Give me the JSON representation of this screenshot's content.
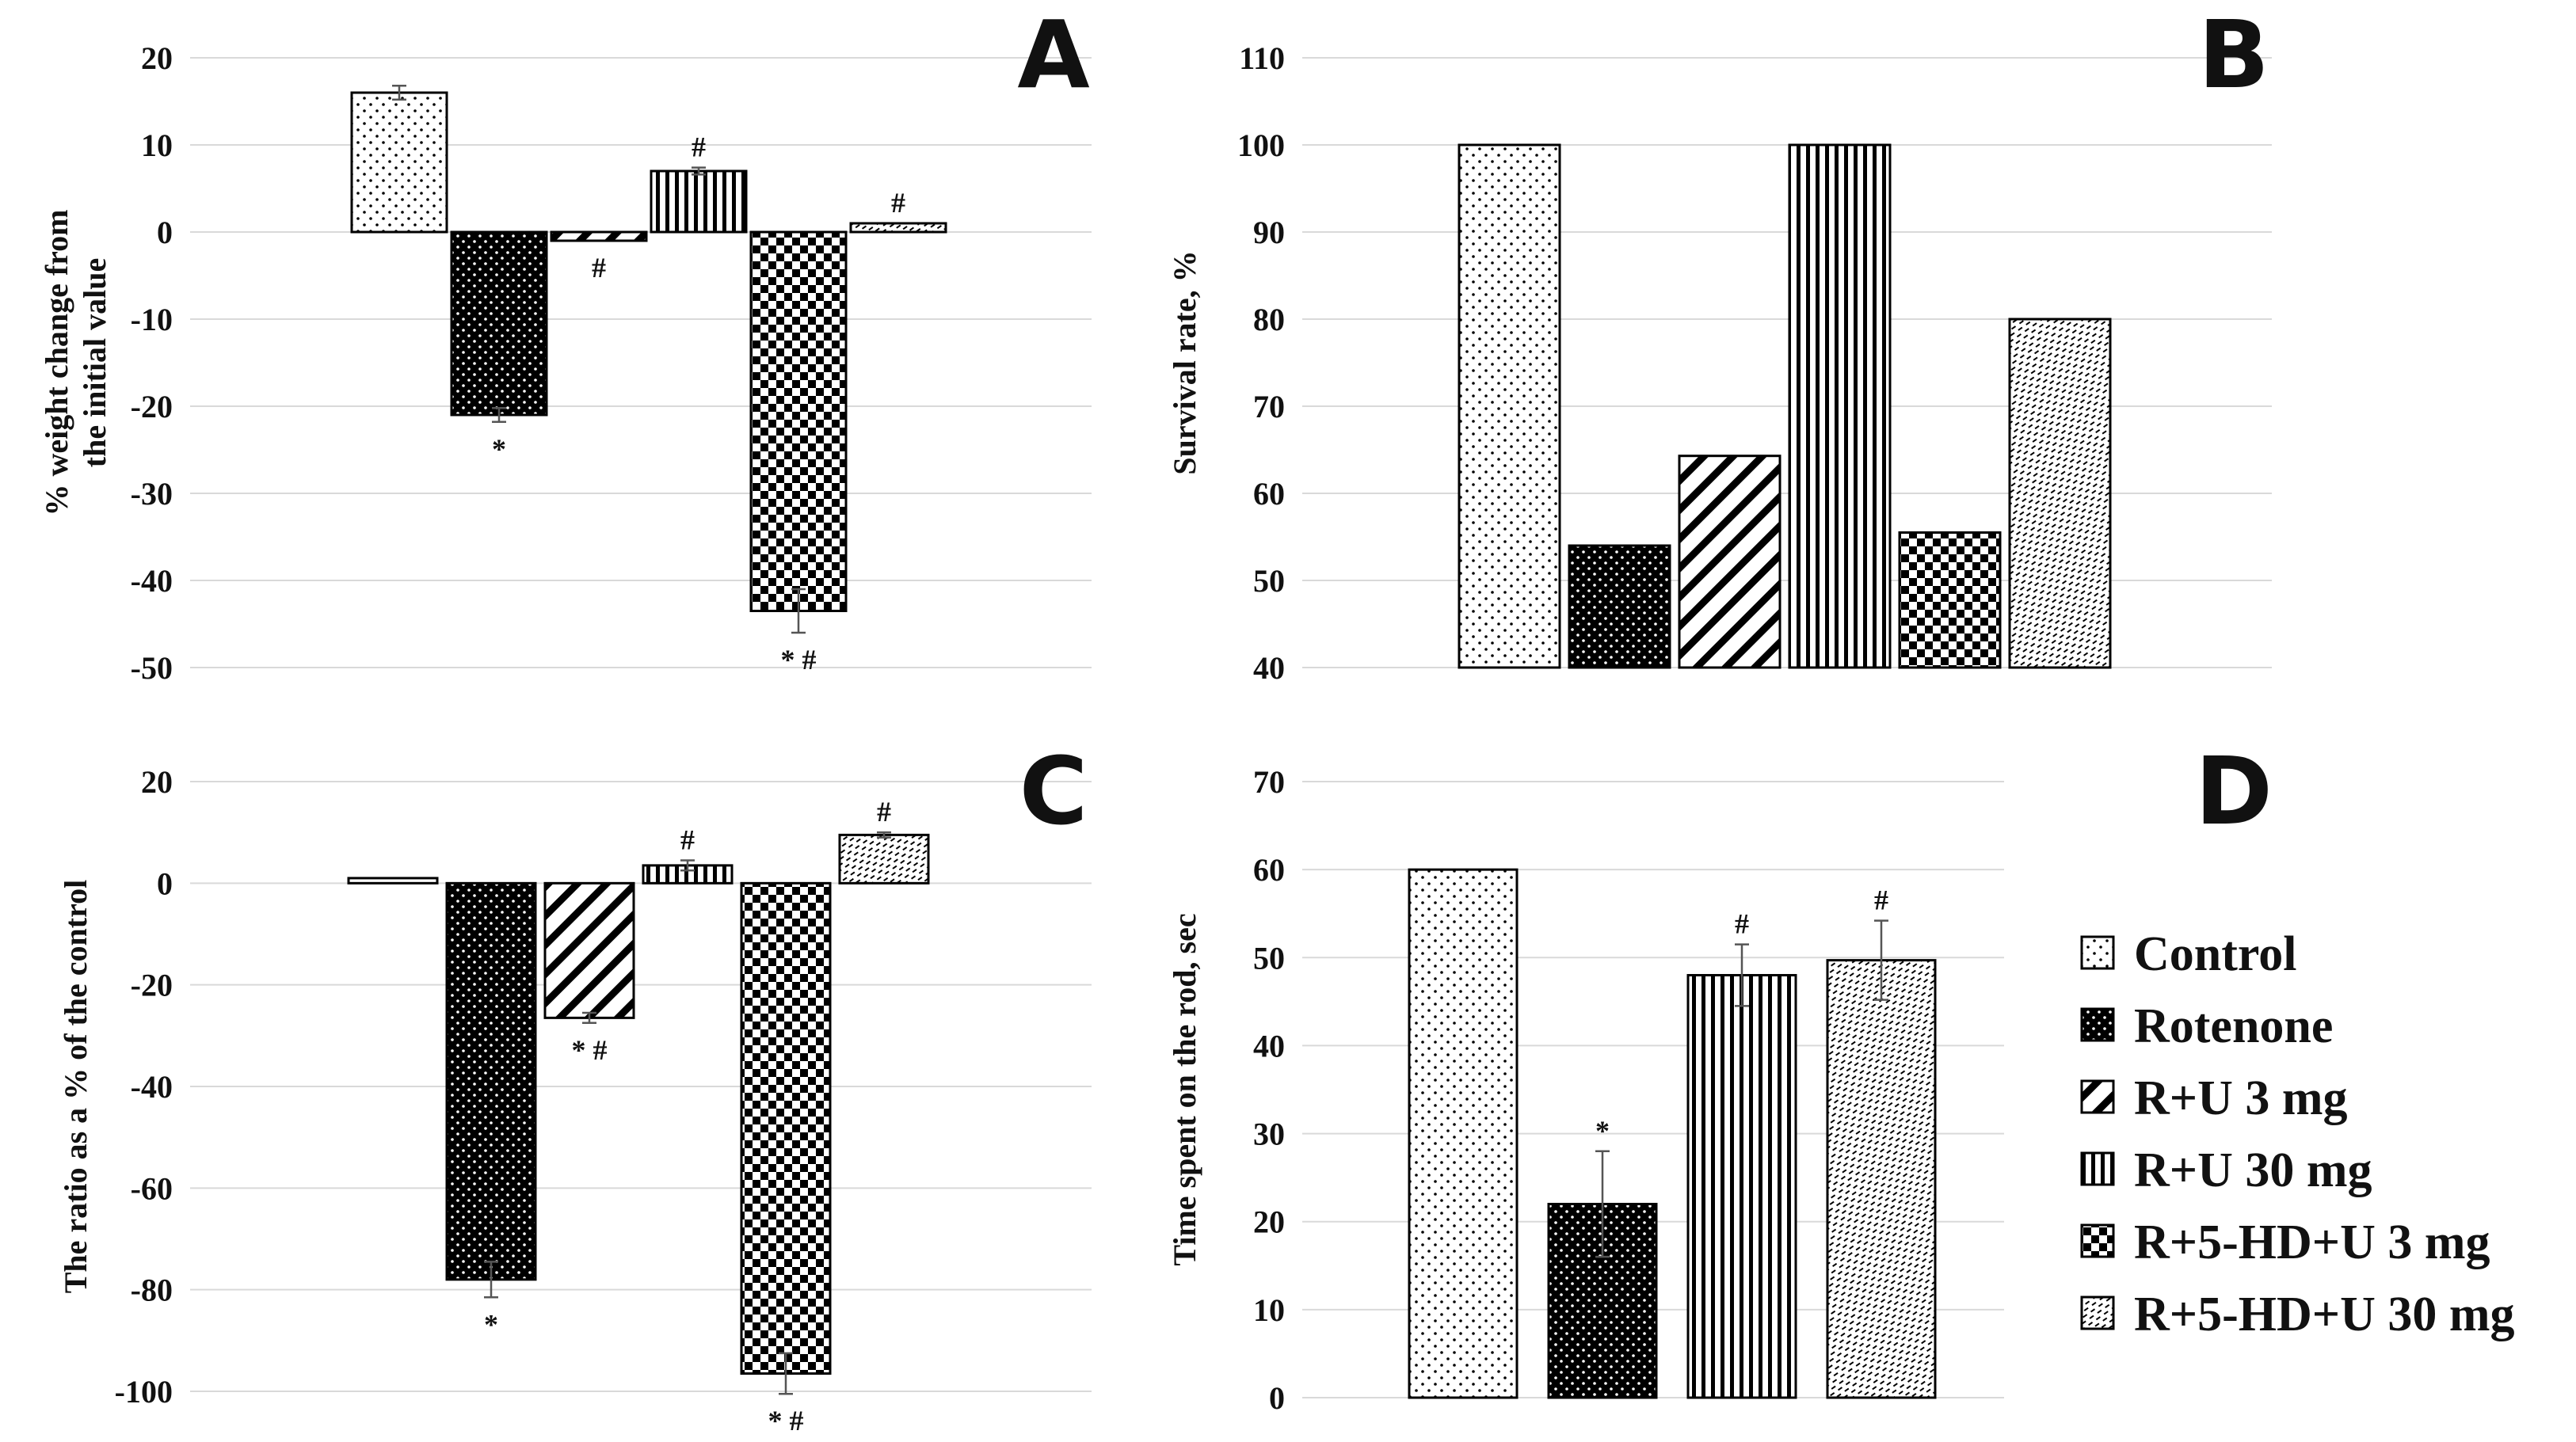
{
  "figure": {
    "legend": [
      {
        "label": "Control",
        "pattern": "dots-sparse"
      },
      {
        "label": "Rotenone",
        "pattern": "dots-black"
      },
      {
        "label": "R+U 3 mg",
        "pattern": "diag-wide"
      },
      {
        "label": "R+U 30 mg",
        "pattern": "vertical"
      },
      {
        "label": "R+5-HD+U 3 mg",
        "pattern": "checker"
      },
      {
        "label": "R+5-HD+U 30 mg",
        "pattern": "diag-fine"
      }
    ],
    "colors": {
      "bar_stroke": "#000000",
      "grid": "#d9d9d9",
      "text": "#111111"
    }
  },
  "chart_data": [
    {
      "panel": "A",
      "type": "bar",
      "title": "",
      "ylabel_lines": [
        "% weight change from",
        "the initial value"
      ],
      "xlabel": "",
      "ylim": [
        -50,
        20
      ],
      "yticks": [
        20,
        10,
        0,
        -10,
        -20,
        -30,
        -40,
        -50
      ],
      "categories": [
        "Control",
        "Rotenone",
        "R+U 3 mg",
        "R+U 30 mg",
        "R+5-HD+U 3 mg",
        "R+5-HD+U 30 mg"
      ],
      "values": [
        16,
        -21,
        -1,
        7,
        -43.5,
        1
      ],
      "errors": [
        0.8,
        0.8,
        0,
        0.4,
        2.5,
        0
      ],
      "annotations": [
        "",
        "*",
        "#",
        "#",
        "* #",
        "#"
      ]
    },
    {
      "panel": "B",
      "type": "bar",
      "title": "",
      "ylabel_lines": [
        "Survival rate, %"
      ],
      "xlabel": "",
      "ylim": [
        40,
        110
      ],
      "yticks": [
        110,
        100,
        90,
        80,
        70,
        60,
        50,
        40
      ],
      "categories": [
        "Control",
        "Rotenone",
        "R+U 3 mg",
        "R+U 30 mg",
        "R+5-HD+U 3 mg",
        "R+5-HD+U 30 mg"
      ],
      "values": [
        100,
        54,
        64.3,
        100,
        55.5,
        80
      ],
      "errors": [
        0,
        0,
        0,
        0,
        0,
        0
      ],
      "annotations": [
        "",
        "",
        "",
        "",
        "",
        ""
      ]
    },
    {
      "panel": "C",
      "type": "bar",
      "title": "",
      "ylabel_lines": [
        "The ratio as a % of the control"
      ],
      "xlabel": "",
      "ylim": [
        -100,
        20
      ],
      "yticks": [
        20,
        0,
        -20,
        -40,
        -60,
        -80,
        -100
      ],
      "categories": [
        "Control",
        "Rotenone",
        "R+U 3 mg",
        "R+U 30 mg",
        "R+5-HD+U 3 mg",
        "R+5-HD+U 30 mg"
      ],
      "values": [
        1,
        -78,
        -26.5,
        3.5,
        -96.5,
        9.5
      ],
      "errors": [
        0,
        3.5,
        1,
        1,
        4,
        0.5
      ],
      "annotations": [
        "",
        "*",
        "* #",
        "#",
        "* #",
        "#"
      ]
    },
    {
      "panel": "D",
      "type": "bar",
      "title": "",
      "ylabel_lines": [
        "Time spent on the rod, sec"
      ],
      "xlabel": "",
      "ylim": [
        0,
        70
      ],
      "yticks": [
        70,
        60,
        50,
        40,
        30,
        20,
        10,
        0
      ],
      "categories": [
        "Control",
        "Rotenone",
        "R+U 30 mg",
        "R+5-HD+U 30 mg"
      ],
      "patterns": [
        "dots-sparse",
        "dots-black",
        "vertical",
        "diag-fine"
      ],
      "values": [
        60,
        22,
        48,
        49.7
      ],
      "errors": [
        0,
        6,
        3.5,
        4.5
      ],
      "annotations": [
        "",
        "*",
        "#",
        "#"
      ]
    }
  ]
}
